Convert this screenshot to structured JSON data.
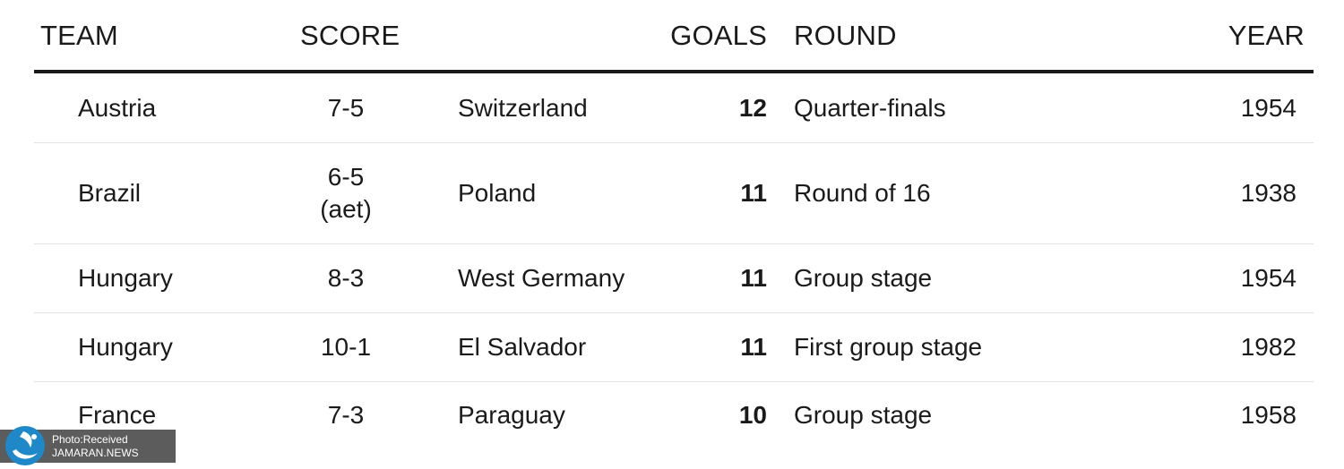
{
  "headers": {
    "team": "TEAM",
    "score": "SCORE",
    "goals": "GOALS",
    "round": "ROUND",
    "year": "YEAR"
  },
  "rows": [
    {
      "team": "Austria",
      "score": "7-5",
      "opponent": "Switzerland",
      "goals": "12",
      "round": "Quarter-finals",
      "year": "1954"
    },
    {
      "team": "Brazil",
      "score": "6-5 (aet)",
      "opponent": "Poland",
      "goals": "11",
      "round": "Round of 16",
      "year": "1938"
    },
    {
      "team": "Hungary",
      "score": "8-3",
      "opponent": "West Germany",
      "goals": "11",
      "round": "Group stage",
      "year": "1954"
    },
    {
      "team": "Hungary",
      "score": "10-1",
      "opponent": "El Salvador",
      "goals": "11",
      "round": "First group stage",
      "year": "1982"
    },
    {
      "team": "France",
      "score": "7-3",
      "opponent": "Paraguay",
      "goals": "10",
      "round": "Group stage",
      "year": "1958"
    }
  ],
  "watermark": {
    "line1": "Photo:Received",
    "line2": "JAMARAN.NEWS",
    "logo_icon": "jamaran-logo-icon",
    "logo_color": "#1e88c8"
  }
}
